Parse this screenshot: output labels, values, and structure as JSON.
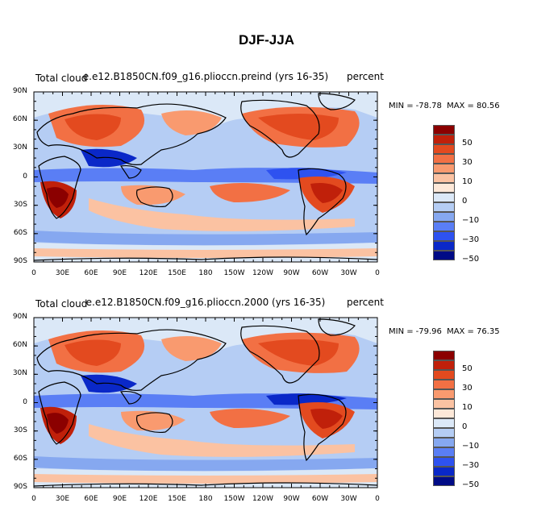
{
  "title": "DJF-JJA",
  "panels": [
    {
      "variable": "Total cloud",
      "case": "e.e12.B1850CN.f09_g16.plioccn.preind (yrs 16-35)",
      "units": "percent",
      "min_label": "MIN =",
      "min_value": "-78.78",
      "max_label": "MAX =",
      "max_value": "80.56"
    },
    {
      "variable": "Total cloud",
      "case": "e.e12.B1850CN.f09_g16.plioccn.2000 (yrs 16-35)",
      "units": "percent",
      "min_label": "MIN =",
      "min_value": "-79.96",
      "max_label": "MAX =",
      "max_value": "76.35"
    }
  ],
  "lat_ticks": [
    "90N",
    "60N",
    "30N",
    "0",
    "30S",
    "60S",
    "90S"
  ],
  "lon_ticks": [
    "0",
    "30E",
    "60E",
    "90E",
    "120E",
    "150E",
    "180",
    "150W",
    "120W",
    "90W",
    "60W",
    "30W",
    "0"
  ],
  "colorbar": {
    "labels": [
      "50",
      "30",
      "10",
      "0",
      "−10",
      "−30",
      "−50"
    ],
    "colors": [
      "#8b0000",
      "#c0200a",
      "#e34a1f",
      "#f27044",
      "#f99a6f",
      "#fbc2a2",
      "#fde8d8",
      "#dbe8f7",
      "#b5cdf4",
      "#86a8f0",
      "#5a7ef5",
      "#2e52f0",
      "#0a28c8",
      "#000b86"
    ]
  }
}
